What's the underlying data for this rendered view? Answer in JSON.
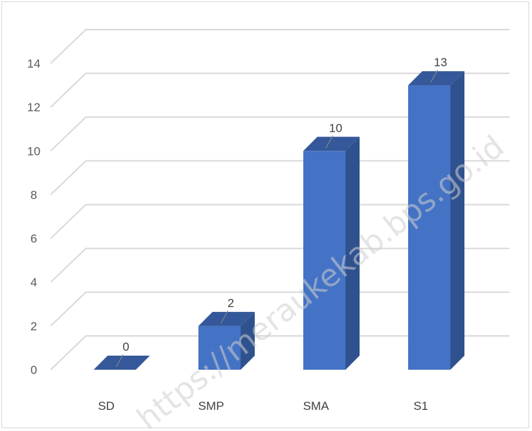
{
  "chart_data": {
    "type": "bar",
    "style": "3d-column",
    "categories": [
      "SD",
      "SMP",
      "SMA",
      "S1"
    ],
    "values": [
      0,
      2,
      10,
      13
    ],
    "data_labels": [
      "0",
      "2",
      "10",
      "13"
    ],
    "yticks": [
      "0",
      "2",
      "4",
      "6",
      "8",
      "10",
      "12",
      "14"
    ],
    "ylim": [
      0,
      14
    ],
    "grid": true,
    "legend": "none",
    "colors": {
      "front": "#4472C4",
      "side": "#2F528F",
      "top": "#35589A",
      "grid": "#d9d9d9"
    }
  },
  "watermark": "https://meraukekab.bps.go.id"
}
